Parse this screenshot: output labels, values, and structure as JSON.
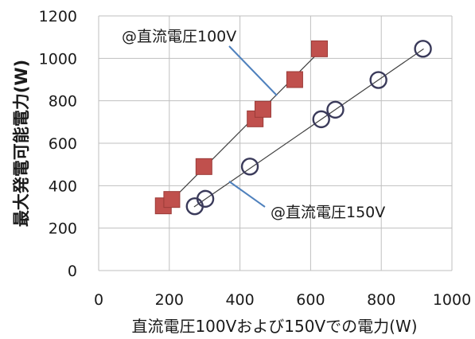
{
  "chart_data": {
    "type": "scatter",
    "xlabel": "直流電圧100Vおよび150Vでの電力(W)",
    "ylabel": "最大発電可能電力(W)",
    "xlim": [
      0,
      1000
    ],
    "ylim": [
      0,
      1200
    ],
    "x_ticks": [
      "0",
      "200",
      "400",
      "600",
      "800",
      "1000"
    ],
    "y_ticks": [
      "0",
      "200",
      "400",
      "600",
      "800",
      "1000",
      "1200"
    ],
    "grid": true,
    "series": [
      {
        "name": "@直流電圧100V",
        "marker": "square",
        "color": "#c0504d",
        "points": [
          {
            "x": 183,
            "y": 305
          },
          {
            "x": 207,
            "y": 335
          },
          {
            "x": 298,
            "y": 490
          },
          {
            "x": 443,
            "y": 715
          },
          {
            "x": 465,
            "y": 760
          },
          {
            "x": 555,
            "y": 900
          },
          {
            "x": 625,
            "y": 1045
          }
        ],
        "trendline": {
          "from": [
            200,
            320
          ],
          "to": [
            630,
            1040
          ]
        }
      },
      {
        "name": "@直流電圧150V",
        "marker": "circle-open",
        "color": "#3a3a5a",
        "points": [
          {
            "x": 272,
            "y": 303
          },
          {
            "x": 302,
            "y": 338
          },
          {
            "x": 428,
            "y": 490
          },
          {
            "x": 630,
            "y": 713
          },
          {
            "x": 670,
            "y": 758
          },
          {
            "x": 792,
            "y": 898
          },
          {
            "x": 918,
            "y": 1045
          }
        ],
        "trendline": {
          "from": [
            270,
            300
          ],
          "to": [
            920,
            1045
          ]
        }
      }
    ],
    "annotations": [
      {
        "text": "@直流電圧100V",
        "series": 0
      },
      {
        "text": "@直流電圧150V",
        "series": 1
      }
    ],
    "leader_color": "#4f81bd"
  }
}
